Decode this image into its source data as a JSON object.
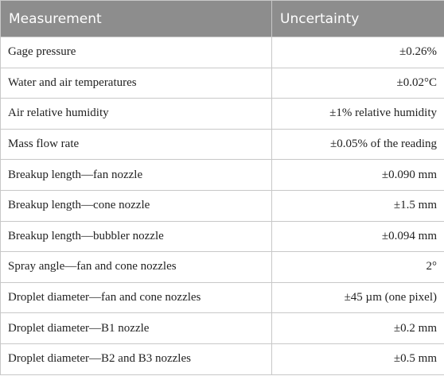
{
  "table": {
    "columns": [
      "Measurement",
      "Uncertainty"
    ],
    "rows": [
      [
        "Gage pressure",
        "±0.26%"
      ],
      [
        "Water and air temperatures",
        "±0.02°C"
      ],
      [
        "Air relative humidity",
        "±1% relative humidity"
      ],
      [
        "Mass flow rate",
        "±0.05% of the reading"
      ],
      [
        "Breakup length—fan nozzle",
        "±0.090 mm"
      ],
      [
        "Breakup length—cone nozzle",
        "±1.5 mm"
      ],
      [
        "Breakup length—bubbler nozzle",
        "±0.094 mm"
      ],
      [
        "Spray angle—fan and cone nozzles",
        "2°"
      ],
      [
        "Droplet diameter—fan and cone nozzles",
        "±45 µm (one pixel)"
      ],
      [
        "Droplet diameter—B1 nozzle",
        "±0.2 mm"
      ],
      [
        "Droplet diameter—B2 and B3 nozzles",
        "±0.5 mm"
      ]
    ]
  }
}
